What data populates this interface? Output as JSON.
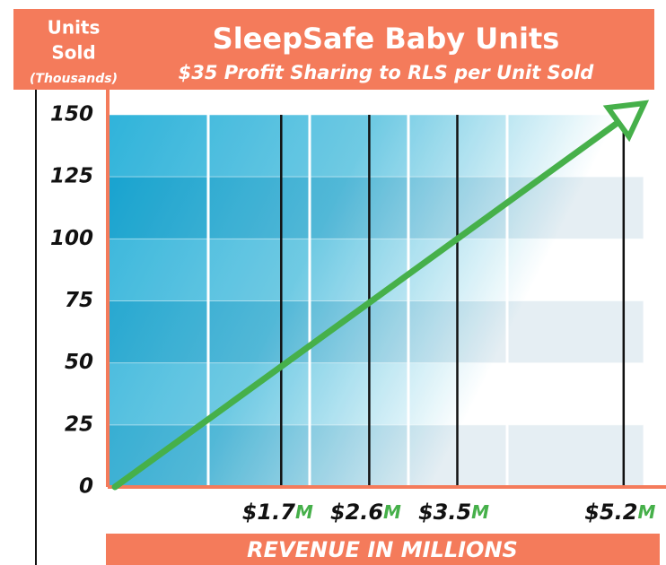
{
  "chart_data": {
    "type": "line",
    "title": "SleepSafe Baby Units",
    "subtitle": "$35 Profit Sharing to RLS per Unit Sold",
    "y_label": [
      "Units",
      "Sold",
      "(Thousands)"
    ],
    "x_label": "REVENUE IN MILLIONS",
    "x": [
      0,
      5.25
    ],
    "series": [
      {
        "name": "Units Sold",
        "color": "#46b04a",
        "values": [
          0,
          150
        ]
      }
    ],
    "xlim": [
      0,
      5.4
    ],
    "xticks": [
      {
        "value": 1.7,
        "label": "$1.7",
        "suffix": "M"
      },
      {
        "value": 2.6,
        "label": "$2.6",
        "suffix": "M"
      },
      {
        "value": 3.5,
        "label": "$3.5",
        "suffix": "M"
      },
      {
        "value": 5.2,
        "label": "$5.2",
        "suffix": "M"
      }
    ],
    "ylim": [
      0,
      150
    ],
    "yticks": [
      0,
      25,
      50,
      75,
      100,
      125,
      150
    ],
    "grid": true
  }
}
